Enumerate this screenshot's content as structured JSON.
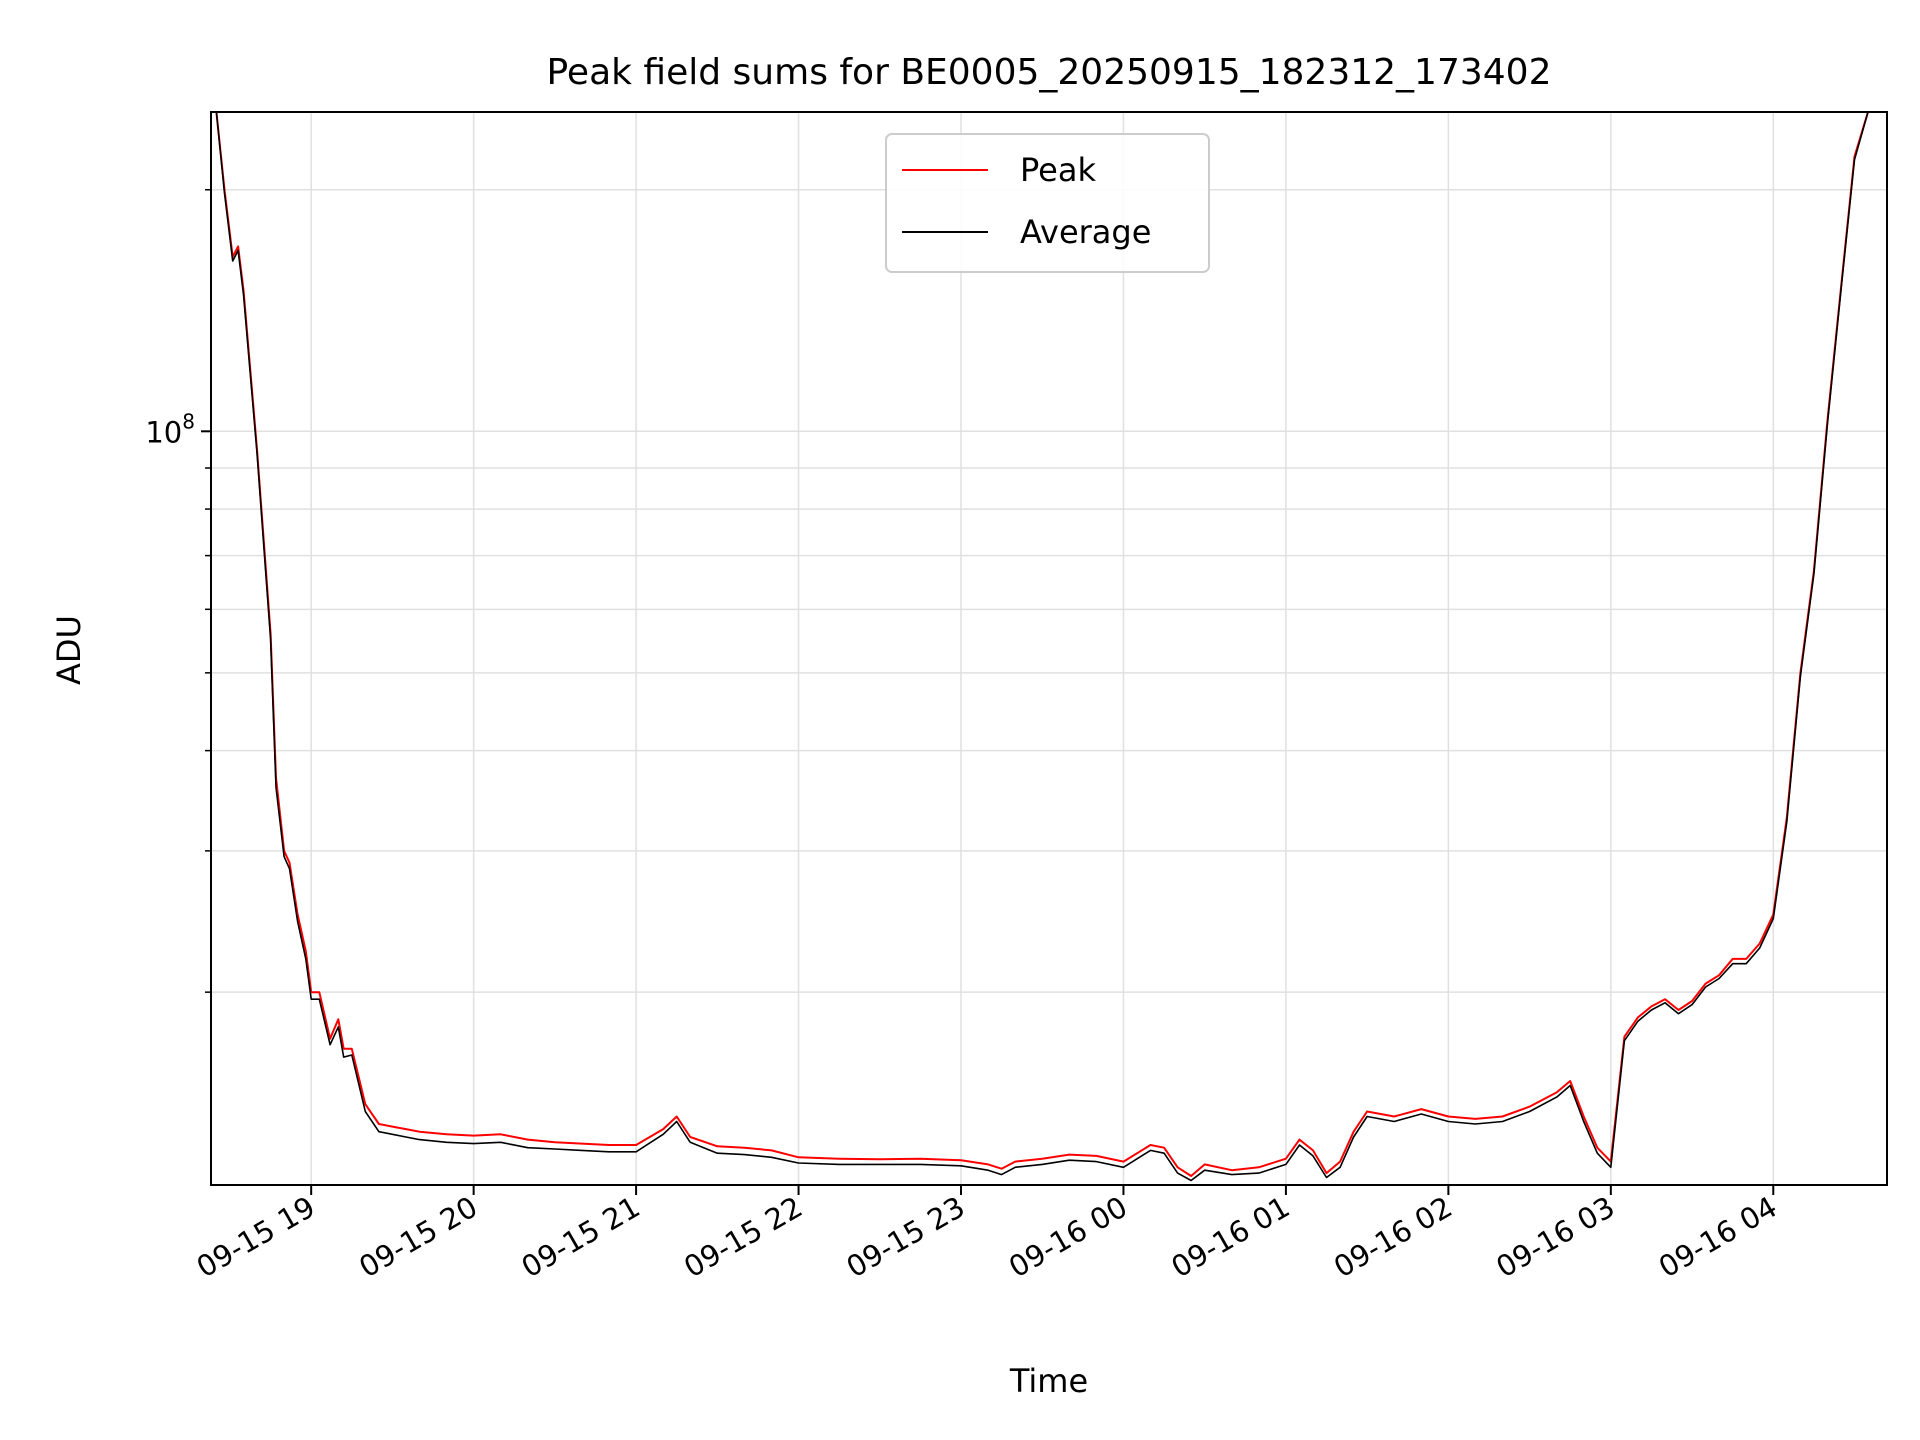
{
  "chart_data": {
    "type": "line",
    "title": "Peak field sums for BE0005_20250915_182312_173402",
    "xlabel": "Time",
    "ylabel": "ADU",
    "yscale": "log",
    "ylim": [
      11500000,
      250000000
    ],
    "xlim": [
      "2025-09-15 18:23",
      "2025-09-16 04:42"
    ],
    "grid": true,
    "legend": {
      "position": "top-center"
    },
    "x_ticks": [
      "09-15 19",
      "09-15 20",
      "09-15 21",
      "09-15 22",
      "09-15 23",
      "09-16 00",
      "09-16 01",
      "09-16 02",
      "09-16 03",
      "09-16 04"
    ],
    "x_tick_times": [
      "2025-09-15 19:00",
      "2025-09-15 20:00",
      "2025-09-15 21:00",
      "2025-09-15 22:00",
      "2025-09-15 23:00",
      "2025-09-16 00:00",
      "2025-09-16 01:00",
      "2025-09-16 02:00",
      "2025-09-16 03:00",
      "2025-09-16 04:00"
    ],
    "y_major_ticks": [
      {
        "value": 100000000,
        "label": "10^8"
      }
    ],
    "y_minor_ticks": [
      20000000,
      30000000,
      40000000,
      50000000,
      60000000,
      70000000,
      80000000,
      90000000,
      200000000
    ],
    "series": [
      {
        "name": "Peak",
        "color": "#ff0000",
        "x": [
          "2025-09-15 18:23",
          "2025-09-15 18:25",
          "2025-09-15 18:28",
          "2025-09-15 18:31",
          "2025-09-15 18:33",
          "2025-09-15 18:35",
          "2025-09-15 18:40",
          "2025-09-15 18:45",
          "2025-09-15 18:47",
          "2025-09-15 18:50",
          "2025-09-15 18:52",
          "2025-09-15 18:55",
          "2025-09-15 18:58",
          "2025-09-15 19:00",
          "2025-09-15 19:03",
          "2025-09-15 19:07",
          "2025-09-15 19:10",
          "2025-09-15 19:12",
          "2025-09-15 19:15",
          "2025-09-15 19:20",
          "2025-09-15 19:25",
          "2025-09-15 19:30",
          "2025-09-15 19:35",
          "2025-09-15 19:40",
          "2025-09-15 19:50",
          "2025-09-15 20:00",
          "2025-09-15 20:10",
          "2025-09-15 20:20",
          "2025-09-15 20:30",
          "2025-09-15 20:40",
          "2025-09-15 20:50",
          "2025-09-15 21:00",
          "2025-09-15 21:10",
          "2025-09-15 21:15",
          "2025-09-15 21:20",
          "2025-09-15 21:30",
          "2025-09-15 21:40",
          "2025-09-15 21:50",
          "2025-09-15 22:00",
          "2025-09-15 22:15",
          "2025-09-15 22:30",
          "2025-09-15 22:45",
          "2025-09-15 23:00",
          "2025-09-15 23:10",
          "2025-09-15 23:15",
          "2025-09-15 23:20",
          "2025-09-15 23:30",
          "2025-09-15 23:40",
          "2025-09-15 23:50",
          "2025-09-16 00:00",
          "2025-09-16 00:10",
          "2025-09-16 00:15",
          "2025-09-16 00:20",
          "2025-09-16 00:25",
          "2025-09-16 00:30",
          "2025-09-16 00:40",
          "2025-09-16 00:50",
          "2025-09-16 01:00",
          "2025-09-16 01:05",
          "2025-09-16 01:10",
          "2025-09-16 01:15",
          "2025-09-16 01:20",
          "2025-09-16 01:25",
          "2025-09-16 01:30",
          "2025-09-16 01:40",
          "2025-09-16 01:50",
          "2025-09-16 02:00",
          "2025-09-16 02:10",
          "2025-09-16 02:20",
          "2025-09-16 02:30",
          "2025-09-16 02:40",
          "2025-09-16 02:45",
          "2025-09-16 02:50",
          "2025-09-16 02:55",
          "2025-09-16 03:00",
          "2025-09-16 03:05",
          "2025-09-16 03:10",
          "2025-09-16 03:15",
          "2025-09-16 03:20",
          "2025-09-16 03:25",
          "2025-09-16 03:30",
          "2025-09-16 03:35",
          "2025-09-16 03:40",
          "2025-09-16 03:45",
          "2025-09-16 03:50",
          "2025-09-16 03:55",
          "2025-09-16 04:00",
          "2025-09-16 04:05",
          "2025-09-16 04:10",
          "2025-09-16 04:15",
          "2025-09-16 04:20",
          "2025-09-16 04:25",
          "2025-09-16 04:30",
          "2025-09-16 04:35",
          "2025-09-16 04:38",
          "2025-09-16 04:42"
        ],
        "values": [
          250000000,
          250000000,
          200000000,
          165000000,
          170000000,
          150000000,
          95000000,
          56000000,
          37000000,
          30000000,
          29000000,
          25000000,
          22500000,
          20000000,
          20000000,
          17500000,
          18500000,
          17000000,
          17000000,
          14500000,
          13700000,
          13600000,
          13500000,
          13400000,
          13300000,
          13250000,
          13300000,
          13100000,
          13000000,
          12950000,
          12900000,
          12900000,
          13500000,
          14000000,
          13200000,
          12850000,
          12800000,
          12700000,
          12450000,
          12400000,
          12380000,
          12400000,
          12350000,
          12200000,
          12050000,
          12300000,
          12400000,
          12550000,
          12500000,
          12300000,
          12900000,
          12800000,
          12100000,
          11800000,
          12200000,
          12000000,
          12100000,
          12400000,
          13100000,
          12700000,
          11900000,
          12300000,
          13400000,
          14200000,
          14000000,
          14300000,
          14000000,
          13900000,
          14000000,
          14400000,
          15000000,
          15500000,
          14000000,
          12800000,
          12300000,
          17600000,
          18600000,
          19200000,
          19600000,
          19000000,
          19500000,
          20500000,
          21000000,
          22000000,
          22000000,
          23000000,
          25000000,
          33000000,
          50000000,
          67000000,
          103000000,
          151000000,
          220000000,
          250000000,
          250000000,
          250000000
        ]
      },
      {
        "name": "Average",
        "color": "#000000",
        "x": [
          "2025-09-15 18:23",
          "2025-09-15 18:25",
          "2025-09-15 18:28",
          "2025-09-15 18:31",
          "2025-09-15 18:33",
          "2025-09-15 18:35",
          "2025-09-15 18:40",
          "2025-09-15 18:45",
          "2025-09-15 18:47",
          "2025-09-15 18:50",
          "2025-09-15 18:52",
          "2025-09-15 18:55",
          "2025-09-15 18:58",
          "2025-09-15 19:00",
          "2025-09-15 19:03",
          "2025-09-15 19:07",
          "2025-09-15 19:10",
          "2025-09-15 19:12",
          "2025-09-15 19:15",
          "2025-09-15 19:20",
          "2025-09-15 19:25",
          "2025-09-15 19:30",
          "2025-09-15 19:35",
          "2025-09-15 19:40",
          "2025-09-15 19:50",
          "2025-09-15 20:00",
          "2025-09-15 20:10",
          "2025-09-15 20:20",
          "2025-09-15 20:30",
          "2025-09-15 20:40",
          "2025-09-15 20:50",
          "2025-09-15 21:00",
          "2025-09-15 21:10",
          "2025-09-15 21:15",
          "2025-09-15 21:20",
          "2025-09-15 21:30",
          "2025-09-15 21:40",
          "2025-09-15 21:50",
          "2025-09-15 22:00",
          "2025-09-15 22:15",
          "2025-09-15 22:30",
          "2025-09-15 22:45",
          "2025-09-15 23:00",
          "2025-09-15 23:10",
          "2025-09-15 23:15",
          "2025-09-15 23:20",
          "2025-09-15 23:30",
          "2025-09-15 23:40",
          "2025-09-15 23:50",
          "2025-09-16 00:00",
          "2025-09-16 00:10",
          "2025-09-16 00:15",
          "2025-09-16 00:20",
          "2025-09-16 00:25",
          "2025-09-16 00:30",
          "2025-09-16 00:40",
          "2025-09-16 00:50",
          "2025-09-16 01:00",
          "2025-09-16 01:05",
          "2025-09-16 01:10",
          "2025-09-16 01:15",
          "2025-09-16 01:20",
          "2025-09-16 01:25",
          "2025-09-16 01:30",
          "2025-09-16 01:40",
          "2025-09-16 01:50",
          "2025-09-16 02:00",
          "2025-09-16 02:10",
          "2025-09-16 02:20",
          "2025-09-16 02:30",
          "2025-09-16 02:40",
          "2025-09-16 02:45",
          "2025-09-16 02:50",
          "2025-09-16 02:55",
          "2025-09-16 03:00",
          "2025-09-16 03:05",
          "2025-09-16 03:10",
          "2025-09-16 03:15",
          "2025-09-16 03:20",
          "2025-09-16 03:25",
          "2025-09-16 03:30",
          "2025-09-16 03:35",
          "2025-09-16 03:40",
          "2025-09-16 03:45",
          "2025-09-16 03:50",
          "2025-09-16 03:55",
          "2025-09-16 04:00",
          "2025-09-16 04:05",
          "2025-09-16 04:10",
          "2025-09-16 04:15",
          "2025-09-16 04:20",
          "2025-09-16 04:25",
          "2025-09-16 04:30",
          "2025-09-16 04:35",
          "2025-09-16 04:38",
          "2025-09-16 04:42"
        ],
        "values": [
          250000000,
          250000000,
          198000000,
          163000000,
          168000000,
          148000000,
          94000000,
          55000000,
          36000000,
          29500000,
          28500000,
          24500000,
          22000000,
          19600000,
          19600000,
          17200000,
          18100000,
          16600000,
          16700000,
          14200000,
          13400000,
          13300000,
          13200000,
          13100000,
          13000000,
          12950000,
          13000000,
          12800000,
          12750000,
          12700000,
          12650000,
          12650000,
          13300000,
          13800000,
          13000000,
          12600000,
          12550000,
          12450000,
          12250000,
          12200000,
          12200000,
          12200000,
          12150000,
          12000000,
          11850000,
          12100000,
          12200000,
          12350000,
          12300000,
          12100000,
          12700000,
          12600000,
          11900000,
          11650000,
          12000000,
          11850000,
          11900000,
          12200000,
          12900000,
          12500000,
          11750000,
          12100000,
          13200000,
          14000000,
          13800000,
          14100000,
          13800000,
          13700000,
          13800000,
          14200000,
          14800000,
          15300000,
          13800000,
          12600000,
          12100000,
          17400000,
          18400000,
          19000000,
          19400000,
          18800000,
          19300000,
          20300000,
          20800000,
          21700000,
          21700000,
          22700000,
          24700000,
          32600000,
          49500000,
          66400000,
          102000000,
          150000000,
          218000000,
          250000000,
          250000000,
          250000000
        ]
      }
    ]
  }
}
